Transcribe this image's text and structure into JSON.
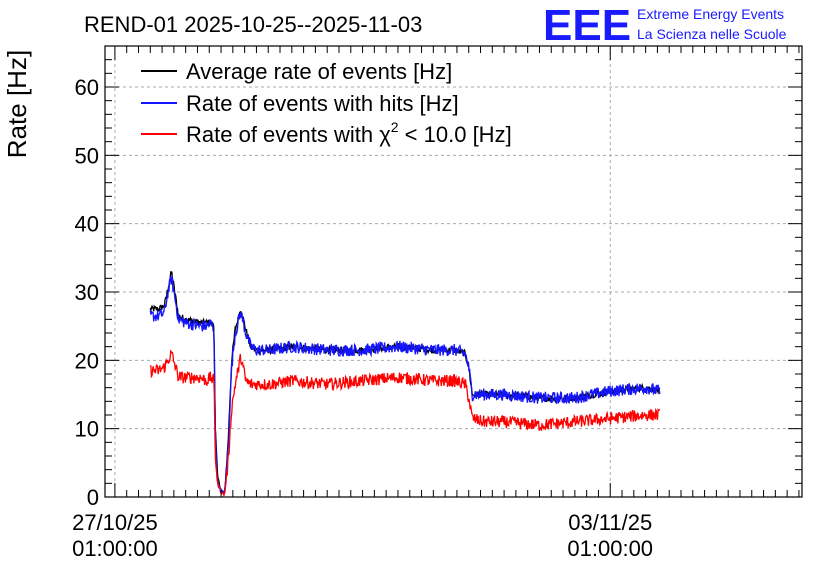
{
  "chart_data": {
    "type": "line",
    "title": "REND-01 2025-10-25--2025-11-03",
    "ylabel": "Rate [Hz]",
    "xlabel": "",
    "ylim": [
      0,
      66
    ],
    "xlim": [
      -0.14,
      9.71
    ],
    "y_ticks": [
      0,
      10,
      20,
      30,
      40,
      50,
      60
    ],
    "x_ticks": [
      {
        "value": 0,
        "line1": "27/10/25",
        "line2": "01:00:00"
      },
      {
        "value": 7,
        "line1": "03/11/25",
        "line2": "01:00:00"
      }
    ],
    "grid": true,
    "legend_position": "top-left",
    "x_unit_note": "",
    "series": [
      {
        "name": "Average rate of events [Hz]",
        "color": "#000000",
        "x": [
          0.5,
          0.62,
          0.7,
          0.75,
          0.8,
          0.9,
          1.0,
          1.2,
          1.3,
          1.35,
          1.4,
          1.42,
          1.45,
          1.5,
          1.55,
          1.6,
          1.65,
          1.7,
          1.78,
          1.85,
          1.92,
          2.0,
          2.2,
          2.5,
          3.0,
          3.5,
          4.0,
          4.5,
          4.8,
          4.95,
          5.0,
          5.05,
          5.2,
          5.5,
          6.0,
          6.5,
          7.0,
          7.5,
          7.7
        ],
        "y": [
          27.5,
          27.5,
          28,
          30.5,
          33,
          26.5,
          26,
          25.5,
          25.5,
          25.5,
          25,
          10,
          3,
          1,
          0.5,
          8,
          20,
          24.5,
          27.5,
          24.5,
          22,
          21.5,
          21.5,
          22,
          21.5,
          21.5,
          22,
          21.5,
          21.5,
          21,
          19,
          15,
          15,
          15,
          14.5,
          14.5,
          15.5,
          16,
          15.5
        ],
        "noise": 0.5
      },
      {
        "name": "Rate of events with hits [Hz]",
        "color": "#1414ff",
        "x": [
          0.5,
          0.62,
          0.7,
          0.75,
          0.8,
          0.9,
          1.0,
          1.2,
          1.3,
          1.35,
          1.4,
          1.42,
          1.45,
          1.5,
          1.55,
          1.6,
          1.65,
          1.7,
          1.78,
          1.85,
          1.92,
          2.0,
          2.2,
          2.5,
          3.0,
          3.5,
          4.0,
          4.5,
          4.8,
          4.95,
          5.0,
          5.05,
          5.2,
          5.5,
          6.0,
          6.5,
          7.0,
          7.5,
          7.7
        ],
        "y": [
          26.5,
          26.5,
          27,
          30,
          32,
          26,
          25.5,
          25,
          25,
          25.5,
          24.5,
          9,
          2,
          1,
          0.5,
          7,
          19,
          24,
          27,
          24,
          22,
          21.5,
          21.5,
          22,
          21.5,
          21.5,
          22,
          21.5,
          21.5,
          21,
          19,
          15,
          15,
          15,
          14.5,
          14.5,
          15.5,
          16,
          15.5
        ],
        "noise": 0.9
      },
      {
        "name": "Rate of events with χ² < 10.0 [Hz]",
        "color": "#ff0000",
        "x": [
          0.5,
          0.62,
          0.7,
          0.75,
          0.8,
          0.9,
          1.0,
          1.2,
          1.3,
          1.35,
          1.4,
          1.42,
          1.45,
          1.5,
          1.55,
          1.6,
          1.65,
          1.7,
          1.78,
          1.85,
          1.92,
          2.0,
          2.2,
          2.5,
          3.0,
          3.5,
          4.0,
          4.5,
          4.8,
          4.95,
          5.0,
          5.05,
          5.2,
          5.5,
          6.0,
          6.5,
          7.0,
          7.5,
          7.7
        ],
        "y": [
          18.5,
          18.5,
          19,
          20,
          21,
          17.5,
          17.5,
          17.5,
          17,
          17.5,
          17,
          6,
          2,
          0.7,
          0.3,
          5,
          13,
          16.5,
          20.5,
          17,
          16.5,
          16.5,
          16.5,
          17,
          16.5,
          17,
          17.5,
          17,
          17,
          16.5,
          14.5,
          11.5,
          11,
          11,
          10.5,
          11,
          11.5,
          12,
          12
        ],
        "noise": 0.9
      }
    ]
  },
  "legend_labels": {
    "avg": "Average rate of events [Hz]",
    "hits": "Rate of events with hits [Hz]",
    "chi_prefix": "Rate of events with χ",
    "chi_sup": "2",
    "chi_suffix": " < 10.0 [Hz]"
  },
  "logo": {
    "mark": "EEE",
    "line1": "Extreme Energy Events",
    "line2": "La Scienza nelle Scuole",
    "color": "#1a1aff"
  }
}
